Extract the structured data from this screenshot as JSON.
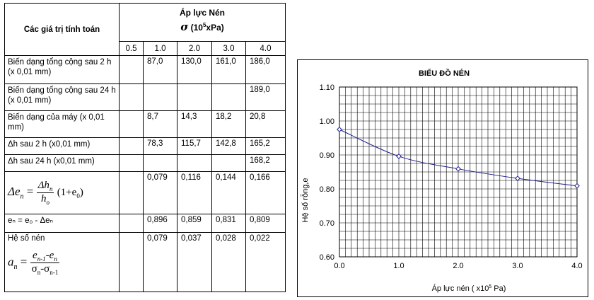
{
  "table": {
    "header_label": "Các giá trị tính toán",
    "pressure_title": "Áp lực Nén",
    "pressure_symbol": "σ",
    "pressure_unit_open": "(10",
    "pressure_unit_exp": "5",
    "pressure_unit_close": "xPa)",
    "pressures": [
      "0.5",
      "1.0",
      "2.0",
      "3.0",
      "4.0"
    ],
    "rows": [
      {
        "label": "Biến dạng tổng cộng sau 2 h (x 0,01 mm)",
        "values": [
          "",
          "87,0",
          "130,0",
          "161,0",
          "186,0"
        ]
      },
      {
        "label": "Biến dạng tổng cộng sau 24 h (x 0,01 mm)",
        "values": [
          "",
          "",
          "",
          "",
          "189,0"
        ]
      },
      {
        "label": "Biến dạng của máy (x 0,01 mm)",
        "values": [
          "",
          "8,7",
          "14,3",
          "18,2",
          "20,8"
        ]
      },
      {
        "label": "Δh sau 2 h (x0,01 mm)",
        "values": [
          "",
          "78,3",
          "115,7",
          "142,8",
          "165,2"
        ]
      },
      {
        "label": "Δh sau 24 h (x0,01 mm)",
        "values": [
          "",
          "",
          "",
          "",
          "168,2"
        ]
      },
      {
        "label": "",
        "values": [
          "",
          "0,079",
          "0,116",
          "0,144",
          "0,166"
        ]
      },
      {
        "label": "eₙ = e₀ - Δeₙ",
        "values": [
          "",
          "0,896",
          "0,859",
          "0,831",
          "0,809"
        ]
      },
      {
        "label": "Hệ số nén",
        "values": [
          "",
          "0,079",
          "0,037",
          "0,028",
          "0,022"
        ]
      }
    ],
    "formula_de": {
      "lhs": "Δe",
      "lhs_sub": "n",
      "num": "Δh",
      "num_sub": "n",
      "den": "h",
      "den_sub": "o",
      "tail": "(1+e",
      "tail_sub": "0",
      "tail_end": ")"
    },
    "formula_an": {
      "lhs": "a",
      "lhs_sub": "n",
      "num_a": "e",
      "num_a_sub": "n-1",
      "num_b": "-e",
      "num_b_sub": "n",
      "den_a": "σ",
      "den_a_sub": "n",
      "den_b": "-σ",
      "den_b_sub": "n-1"
    }
  },
  "chart_data": {
    "type": "line",
    "title": "BIỂU ĐỒ NÉN",
    "xlabel_pre": "Áp lực nén ( x10",
    "xlabel_exp": "5",
    "xlabel_post": " Pa)",
    "ylabel": "Hệ số rỗng,e",
    "xlim": [
      0,
      4
    ],
    "ylim": [
      0.6,
      1.1
    ],
    "x_ticks": [
      "0.0",
      "1.0",
      "2.0",
      "3.0",
      "4.0"
    ],
    "y_ticks": [
      "0.60",
      "0.70",
      "0.80",
      "0.90",
      "1.00",
      "1.10"
    ],
    "grid": true,
    "series": [
      {
        "x": [
          0,
          1,
          2,
          3,
          4
        ],
        "y": [
          0.975,
          0.896,
          0.859,
          0.831,
          0.809
        ],
        "color": "#1f1f8f"
      }
    ]
  }
}
